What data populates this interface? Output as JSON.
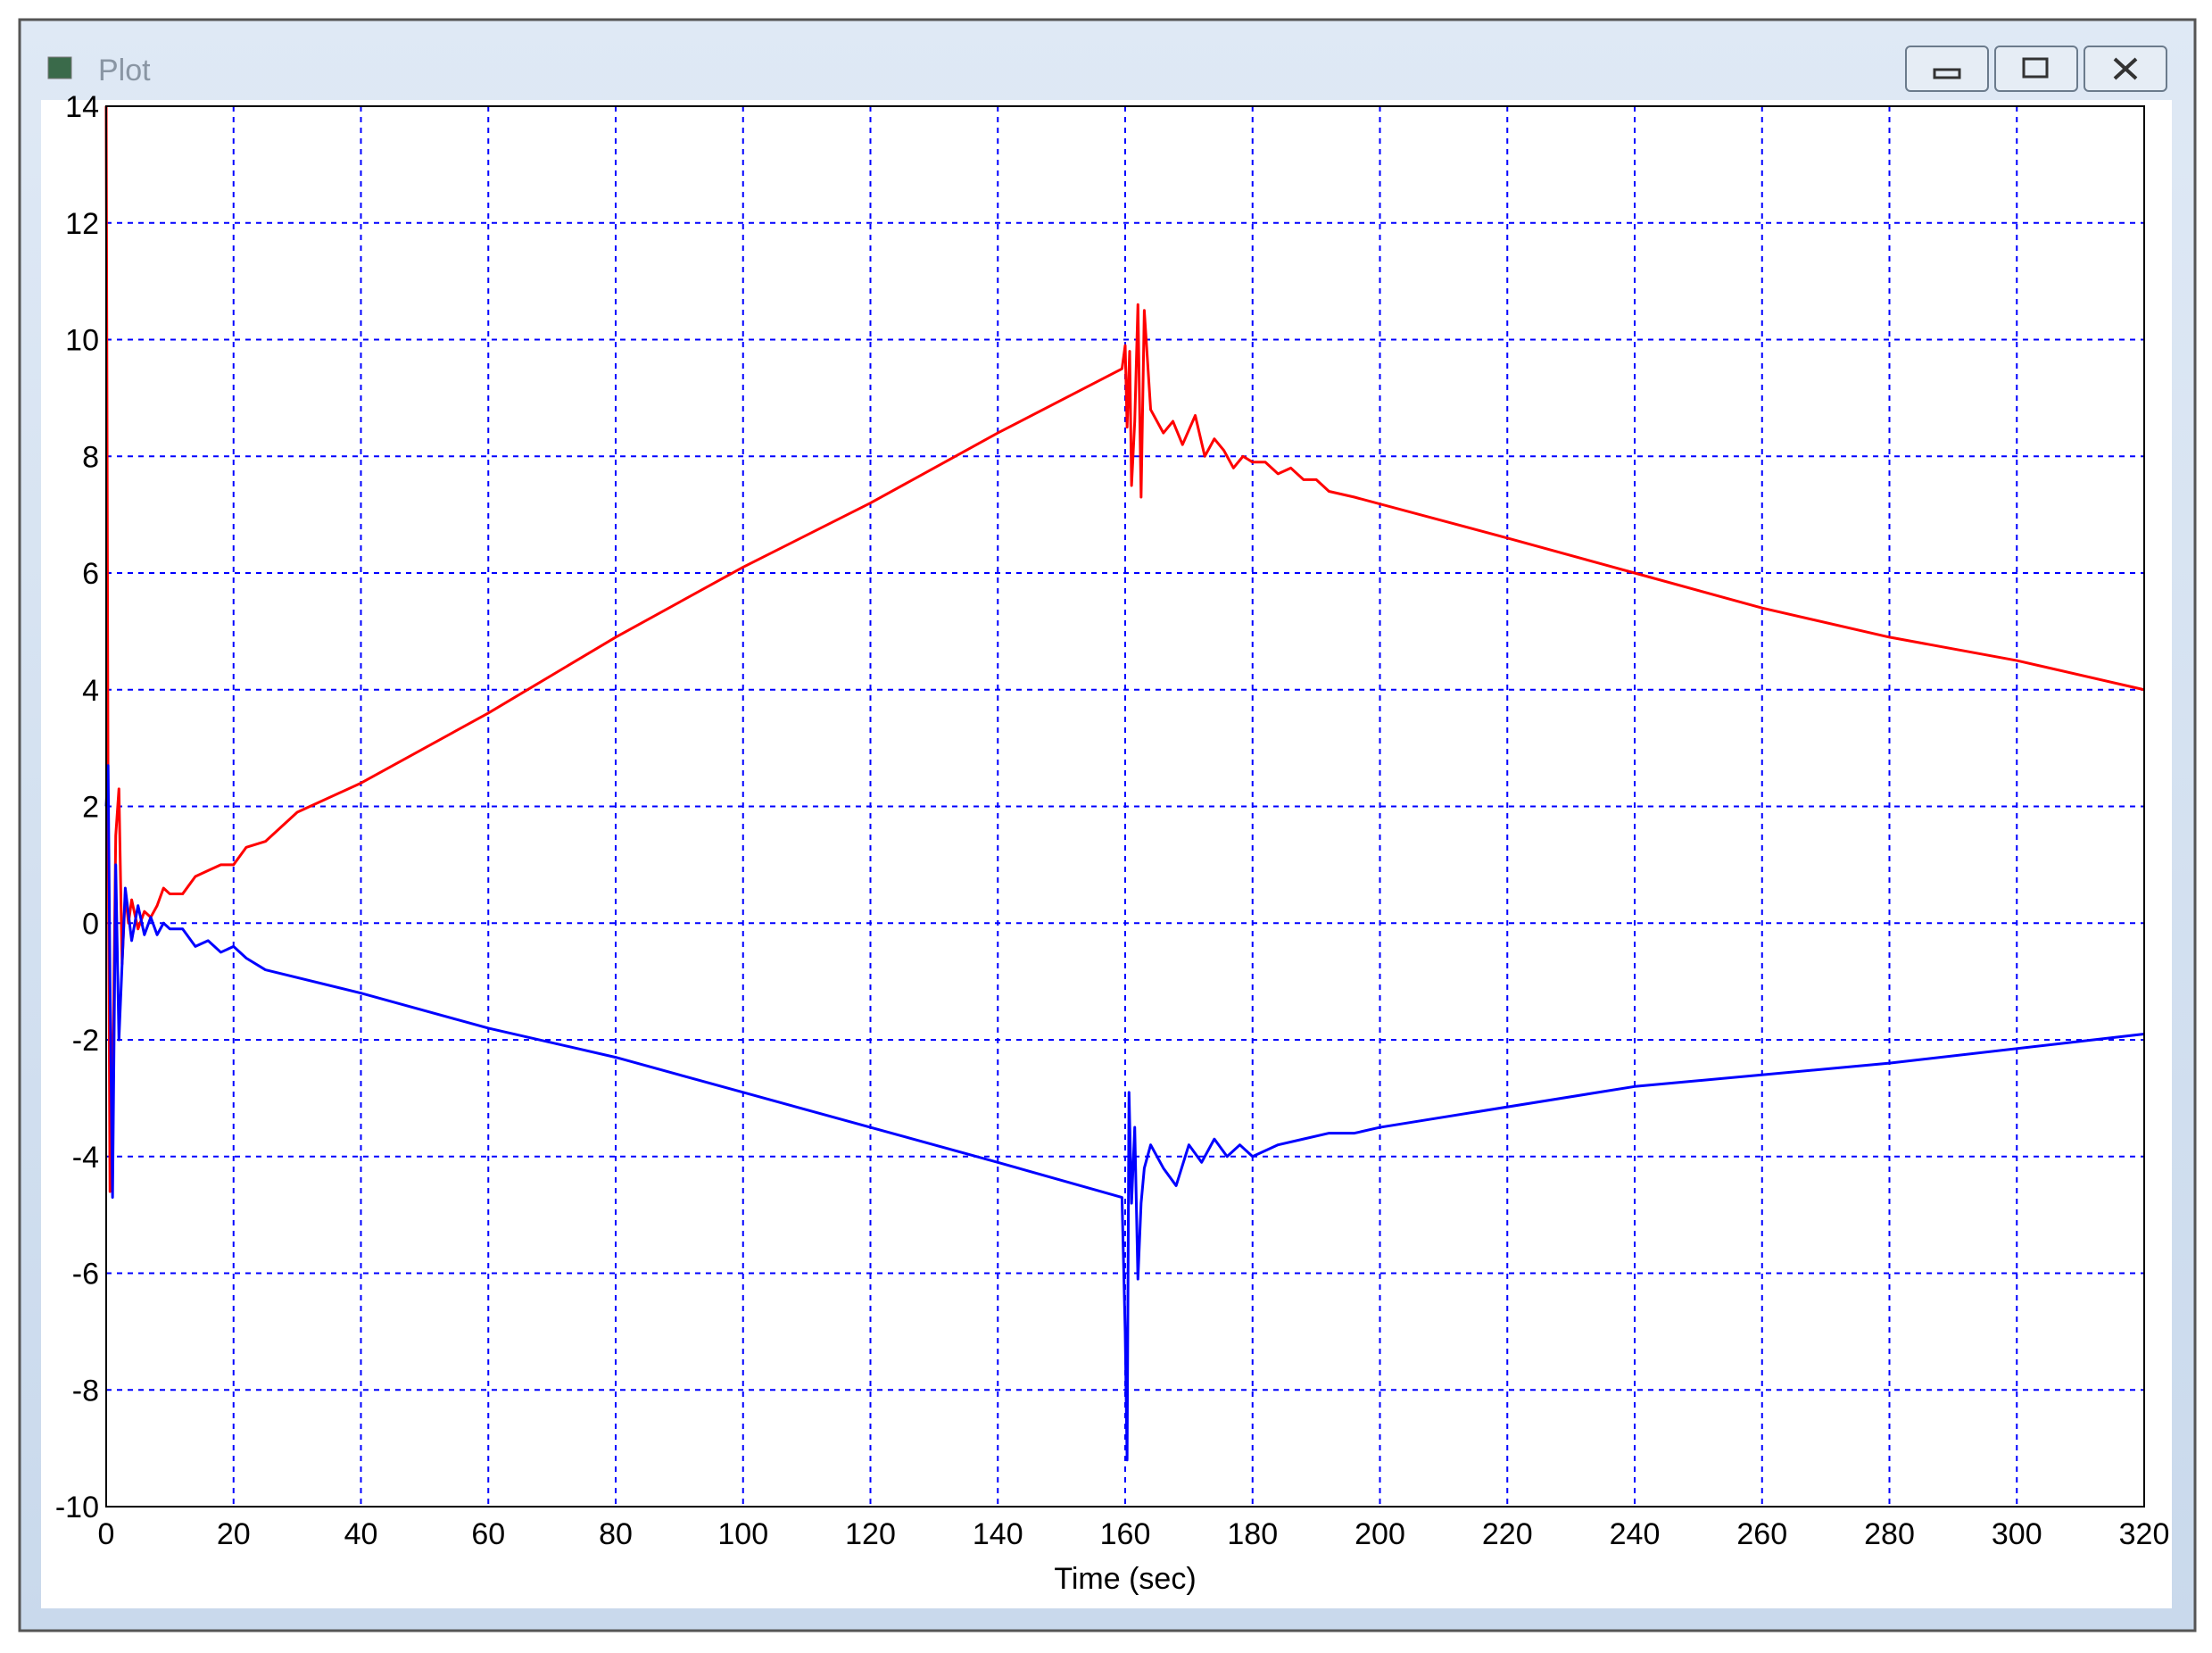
{
  "window": {
    "title": "Plot"
  },
  "chart_data": {
    "type": "line",
    "xlabel": "Time (sec)",
    "xlim": [
      0,
      320
    ],
    "xticks": [
      0,
      20,
      40,
      60,
      80,
      100,
      120,
      140,
      160,
      180,
      200,
      220,
      240,
      260,
      280,
      300,
      320
    ],
    "ylim": [
      -10,
      14
    ],
    "yticks": [
      -10,
      -8,
      -6,
      -4,
      -2,
      0,
      2,
      4,
      6,
      8,
      10,
      12,
      14
    ],
    "grid": true,
    "grid_color": "#0000ff",
    "series": [
      {
        "color": "#ff0000",
        "x": [
          0,
          0.3,
          0.6,
          1,
          1.5,
          2,
          2.5,
          3,
          3.5,
          4,
          5,
          6,
          7,
          8,
          9,
          10,
          12,
          14,
          16,
          18,
          20,
          22,
          25,
          30,
          40,
          60,
          80,
          100,
          120,
          140,
          159.5,
          160,
          160.3,
          160.7,
          161,
          161.5,
          162,
          162.5,
          163,
          164,
          166,
          167.5,
          169,
          171,
          172.5,
          174,
          175.5,
          177,
          178.5,
          180,
          182,
          184,
          186,
          188,
          190,
          192,
          196,
          220,
          240,
          260,
          280,
          300,
          320
        ],
        "values": [
          14,
          2,
          -4.6,
          -3,
          1.5,
          2.3,
          -0.7,
          0.5,
          0,
          0.4,
          -0.1,
          0.2,
          0.1,
          0.3,
          0.6,
          0.5,
          0.5,
          0.8,
          0.9,
          1,
          1,
          1.3,
          1.4,
          1.9,
          2.4,
          3.6,
          4.9,
          6.1,
          7.2,
          8.4,
          9.5,
          9.9,
          8.5,
          9.8,
          7.5,
          8.6,
          10.6,
          7.3,
          10.5,
          8.8,
          8.4,
          8.6,
          8.2,
          8.7,
          8.0,
          8.3,
          8.1,
          7.8,
          8.0,
          7.9,
          7.9,
          7.7,
          7.8,
          7.6,
          7.6,
          7.4,
          7.3,
          6.6,
          6.0,
          5.4,
          4.9,
          4.5,
          4.0
        ]
      },
      {
        "color": "#0000ff",
        "x": [
          0,
          0.3,
          0.6,
          1,
          1.5,
          2,
          3,
          4,
          5,
          6,
          7,
          8,
          9,
          10,
          12,
          14,
          16,
          18,
          20,
          22,
          25,
          40,
          60,
          80,
          100,
          120,
          140,
          159.5,
          160,
          160.3,
          160.6,
          161,
          161.5,
          162,
          162.5,
          163,
          164,
          166,
          168,
          170,
          172,
          174,
          176,
          178,
          180,
          184,
          188,
          192,
          196,
          200,
          240,
          280,
          320
        ],
        "values": [
          2,
          2.7,
          -1,
          -4.7,
          1,
          -2,
          0.6,
          -0.3,
          0.3,
          -0.2,
          0.1,
          -0.2,
          0,
          -0.1,
          -0.1,
          -0.4,
          -0.3,
          -0.5,
          -0.4,
          -0.6,
          -0.8,
          -1.2,
          -1.8,
          -2.3,
          -2.9,
          -3.5,
          -4.1,
          -4.7,
          -7,
          -9.2,
          -2.9,
          -4.8,
          -3.5,
          -6.1,
          -4.8,
          -4.2,
          -3.8,
          -4.2,
          -4.5,
          -3.8,
          -4.1,
          -3.7,
          -4.0,
          -3.8,
          -4.0,
          -3.8,
          -3.7,
          -3.6,
          -3.6,
          -3.5,
          -2.8,
          -2.4,
          -1.9
        ]
      }
    ]
  }
}
